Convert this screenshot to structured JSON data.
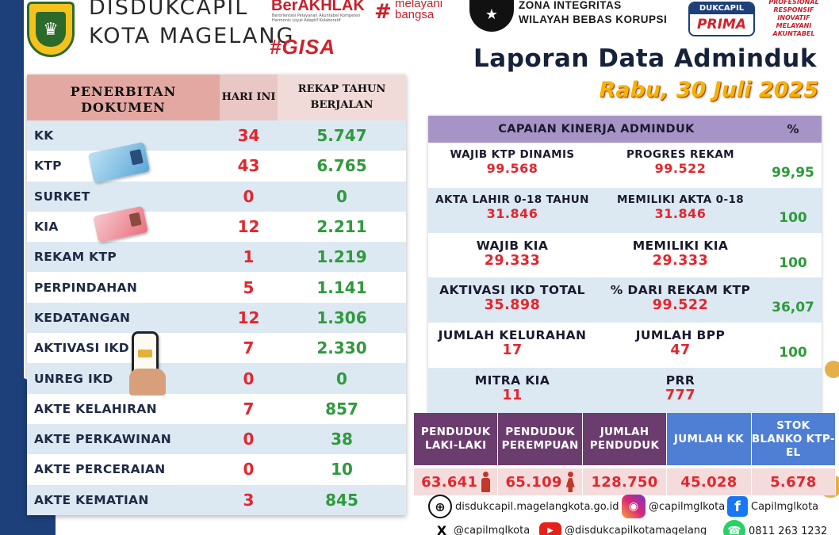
{
  "header": {
    "org_line1": "DISDUKCAPIL",
    "org_line2": "KOTA MAGELANG",
    "berakhlak": "BerAKHLAK",
    "berakhlak_sub": "Berorientasi Pelayanan Akuntabel Kompeten Harmonis Loyal Adaptif Kolaboratif",
    "melayani": "melayani bangsa",
    "hashtag": "#GISA",
    "zi_line1": "ZONA INTEGRITAS",
    "zi_line2": "WILAYAH BEBAS KORUPSI",
    "prima_top": "DUKCAPIL",
    "prima_bottom": "PRIMA",
    "prima_tags": "PROFESIONAL RESPONSIF INOVATIF MELAYANI AKUNTABEL",
    "report_title": "Laporan Data Adminduk",
    "report_date": "Rabu, 30 Juli 2025"
  },
  "documents": {
    "col_doc": "PENERBITAN DOKUMEN",
    "col_today": "HARI INI",
    "col_ytd": "REKAP TAHUN BERJALAN",
    "rows": [
      {
        "name": "KK",
        "today": "34",
        "ytd": "5.747"
      },
      {
        "name": "KTP",
        "today": "43",
        "ytd": "6.765"
      },
      {
        "name": "SURKET",
        "today": "0",
        "ytd": "0"
      },
      {
        "name": "KIA",
        "today": "12",
        "ytd": "2.211"
      },
      {
        "name": "REKAM KTP",
        "today": "1",
        "ytd": "1.219"
      },
      {
        "name": "PERPINDAHAN",
        "today": "5",
        "ytd": "1.141"
      },
      {
        "name": "KEDATANGAN",
        "today": "12",
        "ytd": "1.306"
      },
      {
        "name": "AKTIVASI IKD",
        "today": "7",
        "ytd": "2.330"
      },
      {
        "name": "UNREG IKD",
        "today": "0",
        "ytd": "0"
      },
      {
        "name": "AKTE KELAHIRAN",
        "today": "7",
        "ytd": "857"
      },
      {
        "name": "AKTE PERKAWINAN",
        "today": "0",
        "ytd": "38"
      },
      {
        "name": "AKTE PERCERAIAN",
        "today": "0",
        "ytd": "10"
      },
      {
        "name": "AKTE KEMATIAN",
        "today": "3",
        "ytd": "845"
      }
    ]
  },
  "kinerja": {
    "title": "CAPAIAN KINERJA ADMINDUK",
    "pct_header": "%",
    "rows": [
      {
        "l_label": "WAJIB KTP DINAMIS",
        "l_value": "99.568",
        "r_label": "PROGRES REKAM",
        "r_value": "99.522",
        "pct": "99,95"
      },
      {
        "l_label": "AKTA LAHIR 0-18 TAHUN",
        "l_value": "31.846",
        "r_label": "MEMILIKI AKTA 0-18",
        "r_value": "31.846",
        "pct": "100"
      },
      {
        "l_label": "WAJIB KIA",
        "l_value": "29.333",
        "r_label": "MEMILIKI KIA",
        "r_value": "29.333",
        "pct": "100"
      },
      {
        "l_label": "AKTIVASI IKD TOTAL",
        "l_value": "35.898",
        "r_label": "% DARI REKAM KTP",
        "r_value": "99.522",
        "pct": "36,07"
      },
      {
        "l_label": "JUMLAH KELURAHAN",
        "l_value": "17",
        "r_label": "JUMLAH BPP",
        "r_value": "47",
        "pct": "100"
      },
      {
        "l_label": "MITRA KIA",
        "l_value": "11",
        "r_label": "PRR",
        "r_value": "777",
        "pct": ""
      }
    ]
  },
  "population": {
    "headers": [
      "PENDUDUK LAKI-LAKI",
      "PENDUDUK PEREMPUAN",
      "JUMLAH PENDUDUK",
      "JUMLAH KK",
      "STOK BLANKO KTP-EL"
    ],
    "values": [
      "63.641",
      "65.109",
      "128.750",
      "45.028",
      "5.678"
    ]
  },
  "footer": {
    "website": "disdukcapil.magelangkota.go.id",
    "instagram": "@capilmglkota",
    "facebook": "Capilmglkota",
    "x": "@capilmglkota",
    "youtube": "@disdukcapilkotamagelang",
    "whatsapp": "0811 263 1232"
  }
}
